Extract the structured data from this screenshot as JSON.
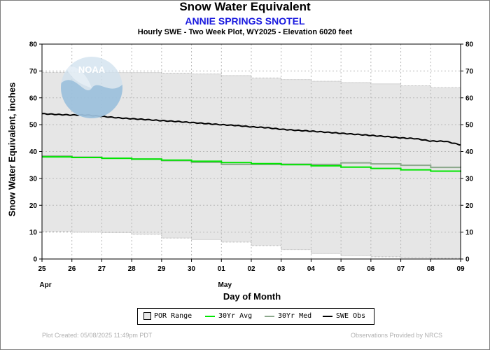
{
  "title": "Snow Water Equivalent",
  "subtitle": "ANNIE SPRINGS SNOTEL",
  "subsubtitle": "Hourly SWE - Two Week Plot, WY2025 -  Elevation 6020 feet",
  "footer": {
    "created": "Plot Created: 05/08/2025 11:49pm PDT",
    "provided": "Observations Provided by NRCS"
  },
  "logo_text": "NOAA",
  "colors": {
    "por_range": "#e6e6e6",
    "avg": "#00e600",
    "med": "#8ca88c",
    "obs": "#000000"
  },
  "chart_data": {
    "type": "line",
    "title": "Snow Water Equivalent",
    "subtitle": "ANNIE SPRINGS SNOTEL",
    "xlabel": "Day of Month",
    "ylabel": "Snow Water Equivalent, inches",
    "xlim": [
      0,
      14
    ],
    "ylim": [
      0,
      80
    ],
    "yticks": [
      0,
      10,
      20,
      30,
      40,
      50,
      60,
      70,
      80
    ],
    "x_tick_labels": [
      "25",
      "26",
      "27",
      "28",
      "29",
      "30",
      "01",
      "02",
      "03",
      "04",
      "05",
      "06",
      "07",
      "08",
      "09"
    ],
    "month_labels": [
      {
        "label": "Apr",
        "x": 0
      },
      {
        "label": "May",
        "x": 6
      }
    ],
    "grid": true,
    "legend": {
      "placement": "bottom",
      "entries": [
        "POR Range",
        "30Yr Avg",
        "30Yr Med",
        "SWE Obs"
      ]
    },
    "series": [
      {
        "name": "POR Range",
        "kind": "range",
        "x": [
          0,
          1,
          2,
          3,
          4,
          5,
          6,
          7,
          8,
          9,
          10,
          11,
          12,
          13,
          14
        ],
        "low": [
          10.2,
          10.0,
          9.8,
          9.2,
          7.8,
          7.2,
          6.3,
          5.0,
          3.5,
          2.0,
          1.2,
          0.8,
          0.5,
          0.3,
          0.2
        ],
        "high": [
          69.5,
          69.5,
          69.4,
          69.4,
          69.2,
          68.9,
          68.3,
          67.4,
          66.8,
          66.2,
          65.7,
          65.2,
          64.5,
          63.8,
          63.5
        ]
      },
      {
        "name": "30Yr Avg",
        "kind": "line",
        "x": [
          0,
          1,
          2,
          3,
          4,
          5,
          6,
          7,
          8,
          9,
          10,
          11,
          12,
          13,
          14
        ],
        "values": [
          38.0,
          37.8,
          37.5,
          37.2,
          36.8,
          36.4,
          35.9,
          35.5,
          35.1,
          34.7,
          34.2,
          33.7,
          33.2,
          32.7,
          32.4
        ]
      },
      {
        "name": "30Yr Med",
        "kind": "line",
        "x": [
          0,
          1,
          2,
          3,
          4,
          5,
          6,
          7,
          8,
          9,
          10,
          11,
          12,
          13,
          14
        ],
        "values": [
          38.3,
          37.9,
          37.5,
          37.2,
          36.6,
          36.0,
          35.2,
          35.2,
          35.3,
          35.2,
          35.8,
          35.4,
          34.9,
          34.1,
          34.0
        ]
      },
      {
        "name": "SWE Obs",
        "kind": "line",
        "x": [
          0,
          0.5,
          1,
          1.5,
          2,
          2.5,
          3,
          3.5,
          4,
          4.5,
          5,
          5.5,
          6,
          6.5,
          7,
          7.5,
          8,
          8.5,
          9,
          9.5,
          10,
          10.5,
          11,
          11.5,
          12,
          12.5,
          13,
          13.5,
          14
        ],
        "values": [
          54.1,
          53.8,
          53.6,
          53.6,
          53.1,
          52.6,
          52.2,
          51.9,
          51.5,
          51.2,
          50.8,
          50.4,
          50.0,
          49.7,
          49.2,
          48.9,
          48.3,
          47.9,
          47.6,
          47.2,
          46.8,
          46.4,
          46.0,
          45.6,
          45.1,
          44.8,
          43.9,
          43.8,
          42.5
        ]
      }
    ]
  },
  "legend_labels": {
    "por": "POR Range",
    "avg": "30Yr Avg",
    "med": "30Yr Med",
    "obs": "SWE Obs"
  }
}
